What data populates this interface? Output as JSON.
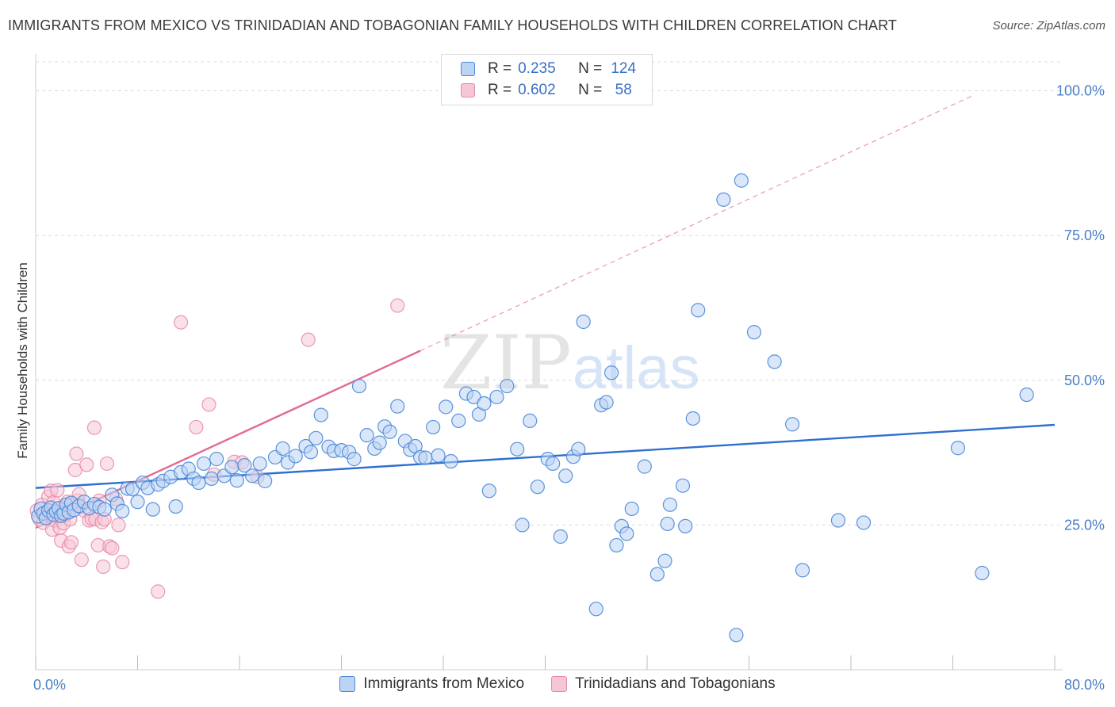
{
  "header": {
    "title": "IMMIGRANTS FROM MEXICO VS TRINIDADIAN AND TOBAGONIAN FAMILY HOUSEHOLDS WITH CHILDREN CORRELATION CHART",
    "source": "Source: ZipAtlas.com"
  },
  "legend": {
    "rows": [
      {
        "r_label": "R =",
        "r_value": "0.235",
        "n_label": "N =",
        "n_value": "124"
      },
      {
        "r_label": "R =",
        "r_value": "0.602",
        "n_label": "N =",
        "n_value": "58"
      }
    ]
  },
  "bottom_legend": {
    "series_a": "Immigrants from Mexico",
    "series_b": "Trinidadians and Tobagonians"
  },
  "watermark": {
    "zip": "ZIP",
    "atlas": "atlas"
  },
  "colors": {
    "blue": "#4a88d8",
    "blue_fill": "#bcd4f4",
    "blue_line": "#2f6fcf",
    "pink": "#e68aa8",
    "pink_fill": "#f6c6d5",
    "pink_line": "#e06b95",
    "tick": "#4a7fc8"
  },
  "chart_data": {
    "type": "scatter",
    "title": "IMMIGRANTS FROM MEXICO VS TRINIDADIAN AND TOBAGONIAN FAMILY HOUSEHOLDS WITH CHILDREN CORRELATION CHART",
    "xlabel": "",
    "ylabel": "Family Households with Children",
    "xlim": [
      0,
      80
    ],
    "ylim": [
      0,
      105
    ],
    "x_tick_labels": [
      "0.0%",
      "80.0%"
    ],
    "y_ticks": [
      25,
      50,
      75,
      100
    ],
    "y_tick_labels": [
      "25.0%",
      "50.0%",
      "75.0%",
      "100.0%"
    ],
    "grid": true,
    "series": [
      {
        "name": "Immigrants from Mexico",
        "R": 0.235,
        "N": 124,
        "trend": {
          "x": [
            0,
            80
          ],
          "y": [
            31.4,
            42.3
          ],
          "style": "solid"
        },
        "points": [
          [
            0.2,
            26.5
          ],
          [
            0.4,
            27.8
          ],
          [
            0.6,
            27.0
          ],
          [
            0.8,
            26.2
          ],
          [
            1.0,
            27.5
          ],
          [
            1.2,
            28.0
          ],
          [
            1.4,
            26.8
          ],
          [
            1.6,
            27.3
          ],
          [
            1.8,
            27.9
          ],
          [
            2.0,
            26.6
          ],
          [
            2.2,
            27.0
          ],
          [
            2.4,
            28.5
          ],
          [
            2.6,
            27.2
          ],
          [
            2.8,
            28.8
          ],
          [
            3.0,
            27.6
          ],
          [
            3.4,
            28.3
          ],
          [
            3.8,
            29.0
          ],
          [
            4.2,
            27.9
          ],
          [
            4.6,
            28.6
          ],
          [
            5.0,
            28.1
          ],
          [
            5.4,
            27.7
          ],
          [
            6.0,
            30.2
          ],
          [
            6.4,
            28.7
          ],
          [
            6.8,
            27.4
          ],
          [
            7.2,
            31.3
          ],
          [
            7.6,
            31.2
          ],
          [
            8.0,
            29.0
          ],
          [
            8.4,
            32.3
          ],
          [
            8.8,
            31.4
          ],
          [
            9.2,
            27.7
          ],
          [
            9.6,
            32.0
          ],
          [
            10.0,
            32.6
          ],
          [
            10.6,
            33.3
          ],
          [
            11.0,
            28.2
          ],
          [
            11.4,
            34.1
          ],
          [
            12.0,
            34.7
          ],
          [
            12.4,
            33.0
          ],
          [
            12.8,
            32.3
          ],
          [
            13.2,
            35.6
          ],
          [
            13.8,
            33.0
          ],
          [
            14.2,
            36.4
          ],
          [
            14.8,
            33.5
          ],
          [
            15.4,
            35.0
          ],
          [
            15.8,
            32.7
          ],
          [
            16.4,
            35.3
          ],
          [
            17.0,
            33.5
          ],
          [
            17.6,
            35.6
          ],
          [
            18.0,
            32.6
          ],
          [
            18.8,
            36.7
          ],
          [
            19.4,
            38.2
          ],
          [
            19.8,
            35.8
          ],
          [
            20.4,
            36.9
          ],
          [
            21.2,
            38.6
          ],
          [
            21.6,
            37.6
          ],
          [
            22.0,
            40.0
          ],
          [
            22.4,
            44.0
          ],
          [
            23.0,
            38.5
          ],
          [
            23.4,
            37.8
          ],
          [
            24.0,
            37.9
          ],
          [
            24.6,
            37.6
          ],
          [
            25.0,
            36.4
          ],
          [
            25.4,
            49.0
          ],
          [
            26.0,
            40.5
          ],
          [
            26.6,
            38.2
          ],
          [
            27.0,
            39.2
          ],
          [
            27.4,
            42.0
          ],
          [
            27.8,
            41.1
          ],
          [
            28.4,
            45.5
          ],
          [
            29.0,
            39.5
          ],
          [
            29.4,
            38.0
          ],
          [
            29.8,
            38.6
          ],
          [
            30.2,
            36.7
          ],
          [
            30.6,
            36.6
          ],
          [
            31.2,
            41.9
          ],
          [
            31.6,
            37.0
          ],
          [
            32.2,
            45.4
          ],
          [
            32.6,
            36.0
          ],
          [
            33.2,
            43.0
          ],
          [
            33.8,
            47.7
          ],
          [
            34.4,
            47.1
          ],
          [
            34.8,
            44.1
          ],
          [
            35.2,
            46.0
          ],
          [
            35.6,
            30.9
          ],
          [
            36.2,
            47.1
          ],
          [
            37.0,
            49.0
          ],
          [
            37.8,
            38.1
          ],
          [
            38.2,
            25.0
          ],
          [
            38.8,
            43.0
          ],
          [
            39.4,
            31.6
          ],
          [
            40.2,
            36.4
          ],
          [
            40.6,
            35.6
          ],
          [
            41.2,
            23.0
          ],
          [
            41.6,
            33.5
          ],
          [
            42.2,
            36.8
          ],
          [
            42.6,
            38.1
          ],
          [
            43.0,
            60.1
          ],
          [
            44.0,
            10.5
          ],
          [
            44.4,
            45.7
          ],
          [
            44.8,
            46.2
          ],
          [
            45.2,
            51.3
          ],
          [
            45.6,
            21.5
          ],
          [
            46.0,
            24.8
          ],
          [
            46.4,
            23.5
          ],
          [
            46.8,
            27.8
          ],
          [
            47.8,
            35.1
          ],
          [
            48.8,
            16.5
          ],
          [
            49.4,
            18.8
          ],
          [
            49.6,
            25.2
          ],
          [
            49.8,
            28.5
          ],
          [
            50.8,
            31.8
          ],
          [
            51.6,
            43.4
          ],
          [
            51.0,
            24.8
          ],
          [
            52.0,
            62.1
          ],
          [
            54.0,
            81.2
          ],
          [
            55.0,
            6.0
          ],
          [
            55.4,
            84.5
          ],
          [
            56.4,
            58.3
          ],
          [
            58.0,
            53.2
          ],
          [
            59.4,
            42.4
          ],
          [
            60.2,
            17.2
          ],
          [
            63.0,
            25.8
          ],
          [
            65.0,
            25.4
          ],
          [
            72.4,
            38.3
          ],
          [
            74.3,
            16.7
          ],
          [
            77.8,
            47.5
          ]
        ]
      },
      {
        "name": "Trinidadians and Tobagonians",
        "R": 0.602,
        "N": 58,
        "trend": {
          "x": [
            0,
            30.2
          ],
          "y": [
            24.5,
            55.1
          ],
          "style": "solid",
          "extended_to": [
            73.6,
            99.2
          ],
          "extended_style": "dashed"
        },
        "points": [
          [
            0.1,
            27.5
          ],
          [
            0.3,
            26.0
          ],
          [
            0.5,
            28.5
          ],
          [
            0.6,
            25.4
          ],
          [
            0.8,
            27.2
          ],
          [
            1.0,
            29.9
          ],
          [
            1.1,
            26.8
          ],
          [
            1.2,
            30.9
          ],
          [
            1.3,
            24.2
          ],
          [
            1.4,
            28.9
          ],
          [
            1.5,
            25.8
          ],
          [
            1.6,
            27.3
          ],
          [
            1.7,
            31.0
          ],
          [
            1.8,
            26.5
          ],
          [
            1.9,
            24.5
          ],
          [
            2.0,
            22.3
          ],
          [
            2.1,
            28.0
          ],
          [
            2.2,
            25.3
          ],
          [
            2.3,
            26.7
          ],
          [
            2.4,
            27.8
          ],
          [
            2.5,
            29.0
          ],
          [
            2.6,
            21.3
          ],
          [
            2.7,
            26.0
          ],
          [
            2.8,
            22.0
          ],
          [
            3.0,
            28.6
          ],
          [
            3.1,
            34.5
          ],
          [
            3.2,
            37.3
          ],
          [
            3.3,
            29.2
          ],
          [
            3.4,
            30.3
          ],
          [
            3.5,
            28.1
          ],
          [
            3.6,
            19.0
          ],
          [
            3.8,
            27.5
          ],
          [
            4.0,
            35.4
          ],
          [
            4.2,
            25.8
          ],
          [
            4.4,
            26.1
          ],
          [
            4.6,
            41.8
          ],
          [
            4.7,
            26.0
          ],
          [
            4.9,
            21.5
          ],
          [
            5.0,
            29.2
          ],
          [
            5.2,
            25.5
          ],
          [
            5.3,
            17.8
          ],
          [
            5.4,
            26.0
          ],
          [
            5.6,
            35.6
          ],
          [
            5.8,
            21.3
          ],
          [
            6.0,
            21.0
          ],
          [
            6.3,
            29.5
          ],
          [
            6.5,
            25.0
          ],
          [
            6.8,
            18.6
          ],
          [
            9.6,
            13.5
          ],
          [
            11.4,
            60.0
          ],
          [
            12.6,
            41.9
          ],
          [
            13.6,
            45.8
          ],
          [
            14.0,
            33.7
          ],
          [
            15.6,
            35.9
          ],
          [
            16.2,
            35.8
          ],
          [
            17.4,
            33.3
          ],
          [
            21.4,
            57.0
          ],
          [
            28.4,
            62.9
          ]
        ]
      }
    ]
  }
}
